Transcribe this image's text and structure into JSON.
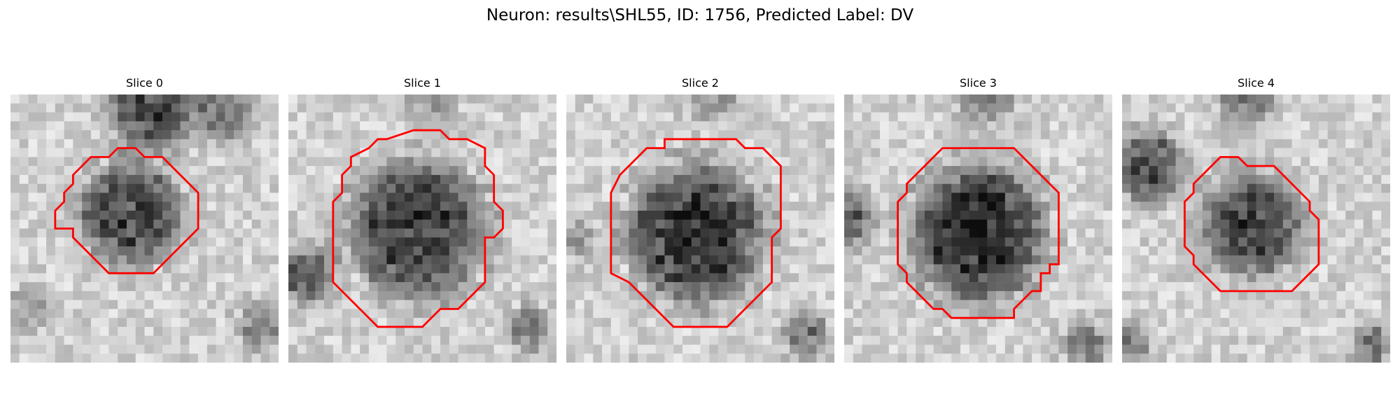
{
  "figure": {
    "title": "Neuron: results\\SHL55, ID: 1756, Predicted Label: DV"
  },
  "colors": {
    "contour": "#ff0000",
    "background": "#ffffff"
  },
  "panels": [
    {
      "title": "Slice 0"
    },
    {
      "title": "Slice 1"
    },
    {
      "title": "Slice 2"
    },
    {
      "title": "Slice 3"
    },
    {
      "title": "Slice 4"
    }
  ]
}
